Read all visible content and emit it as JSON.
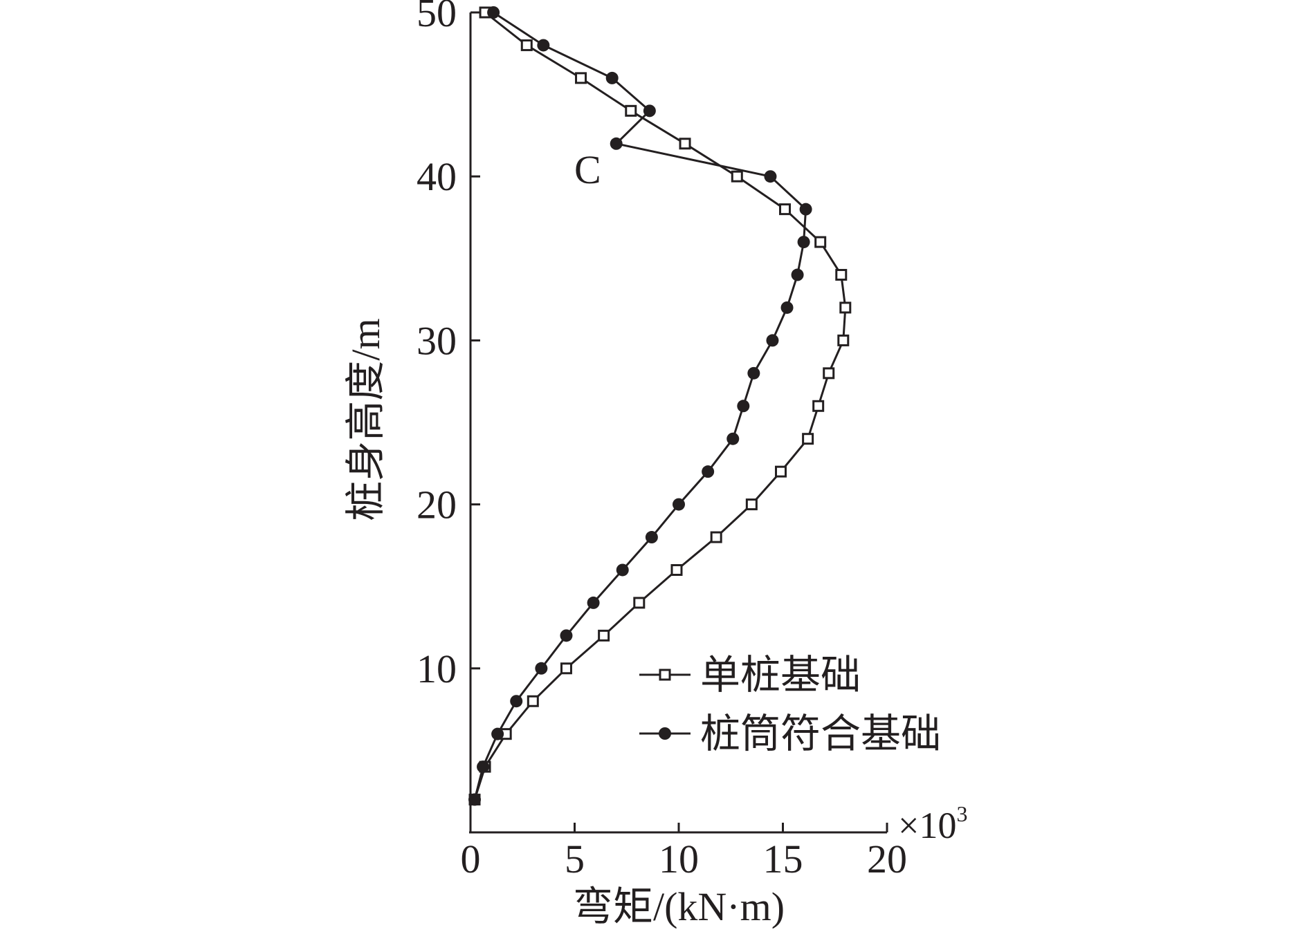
{
  "chart_data": {
    "type": "line",
    "title": "",
    "xlabel": "弯矩/(kN·m)",
    "ylabel": "桩身高度/m",
    "x_scale_note": {
      "base": "×10",
      "exponent": "3"
    },
    "xlim": [
      0,
      20
    ],
    "ylim": [
      0,
      50
    ],
    "x_ticks": [
      "0",
      "5",
      "10",
      "15",
      "20"
    ],
    "y_ticks": [
      "10",
      "20",
      "30",
      "40",
      "50"
    ],
    "grid": false,
    "legend_position": "bottom-right",
    "annotations": [
      {
        "text": "C",
        "x": 5.6,
        "y": 40.5
      }
    ],
    "series": [
      {
        "name": "单桩基础",
        "marker": "open-square",
        "color": "#231f20",
        "points": [
          [
            0.2,
            2
          ],
          [
            0.7,
            4
          ],
          [
            1.7,
            6
          ],
          [
            3.0,
            8
          ],
          [
            4.6,
            10
          ],
          [
            6.4,
            12
          ],
          [
            8.1,
            14
          ],
          [
            9.9,
            16
          ],
          [
            11.8,
            18
          ],
          [
            13.5,
            20
          ],
          [
            14.9,
            22
          ],
          [
            16.2,
            24
          ],
          [
            16.7,
            26
          ],
          [
            17.2,
            28
          ],
          [
            17.9,
            30
          ],
          [
            18.0,
            32
          ],
          [
            17.8,
            34
          ],
          [
            16.8,
            36
          ],
          [
            15.1,
            38
          ],
          [
            12.8,
            40
          ],
          [
            10.3,
            42
          ],
          [
            7.7,
            44
          ],
          [
            5.3,
            46
          ],
          [
            2.7,
            48
          ],
          [
            0.7,
            50
          ]
        ]
      },
      {
        "name": "桩筒符合基础",
        "marker": "filled-circle",
        "color": "#231f20",
        "points": [
          [
            0.2,
            2
          ],
          [
            0.6,
            4
          ],
          [
            1.3,
            6
          ],
          [
            2.2,
            8
          ],
          [
            3.4,
            10
          ],
          [
            4.6,
            12
          ],
          [
            5.9,
            14
          ],
          [
            7.3,
            16
          ],
          [
            8.7,
            18
          ],
          [
            10.0,
            20
          ],
          [
            11.4,
            22
          ],
          [
            12.6,
            24
          ],
          [
            13.1,
            26
          ],
          [
            13.6,
            28
          ],
          [
            14.5,
            30
          ],
          [
            15.2,
            32
          ],
          [
            15.7,
            34
          ],
          [
            16.0,
            36
          ],
          [
            16.1,
            38
          ],
          [
            14.4,
            40
          ],
          [
            7.0,
            42
          ],
          [
            8.6,
            44
          ],
          [
            6.8,
            46
          ],
          [
            3.5,
            48
          ],
          [
            1.1,
            50
          ]
        ]
      }
    ]
  }
}
